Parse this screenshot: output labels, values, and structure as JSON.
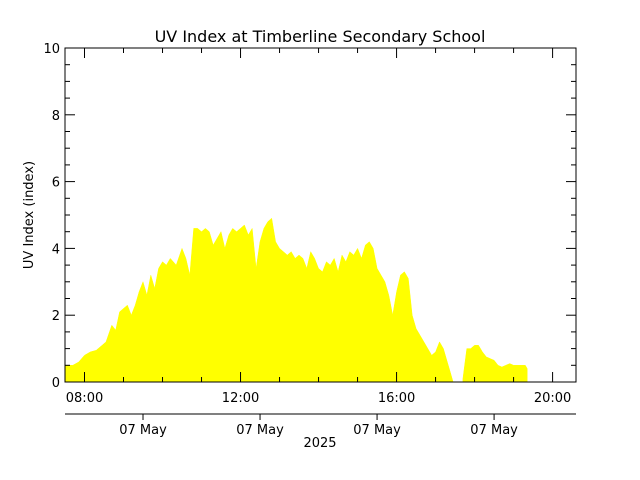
{
  "chart_data": {
    "type": "area",
    "title": "UV Index at Timberline Secondary School",
    "ylabel": "UV Index (index)",
    "ylim": [
      0,
      10
    ],
    "yticks": [
      0,
      2,
      4,
      6,
      8,
      10
    ],
    "xlim": [
      7.5,
      20.6
    ],
    "xticks": [
      {
        "x": 8,
        "label": "08:00"
      },
      {
        "x": 12,
        "label": "12:00"
      },
      {
        "x": 16,
        "label": "16:00"
      },
      {
        "x": 20,
        "label": "20:00"
      }
    ],
    "date_ticks": [
      {
        "x": 9.5,
        "label": "07 May"
      },
      {
        "x": 12.5,
        "label": "07 May"
      },
      {
        "x": 15.5,
        "label": "07 May"
      },
      {
        "x": 18.5,
        "label": "07 May"
      }
    ],
    "year_label": "2025",
    "grid": false,
    "fill_color": "#ffff00",
    "series": [
      {
        "segments": [
          [
            [
              7.5,
              0.5
            ],
            [
              7.6,
              0.5
            ],
            [
              7.7,
              0.5
            ],
            [
              7.85,
              0.6
            ],
            [
              8.0,
              0.8
            ],
            [
              8.15,
              0.9
            ],
            [
              8.3,
              0.95
            ],
            [
              8.45,
              1.1
            ],
            [
              8.55,
              1.2
            ],
            [
              8.7,
              1.7
            ],
            [
              8.8,
              1.55
            ],
            [
              8.9,
              2.1
            ],
            [
              9.0,
              2.2
            ],
            [
              9.1,
              2.3
            ],
            [
              9.2,
              2.0
            ],
            [
              9.3,
              2.3
            ],
            [
              9.4,
              2.7
            ],
            [
              9.5,
              3.0
            ],
            [
              9.6,
              2.6
            ],
            [
              9.7,
              3.2
            ],
            [
              9.8,
              2.8
            ],
            [
              9.9,
              3.4
            ],
            [
              10.0,
              3.6
            ],
            [
              10.1,
              3.5
            ],
            [
              10.2,
              3.7
            ],
            [
              10.35,
              3.5
            ],
            [
              10.5,
              4.0
            ],
            [
              10.6,
              3.7
            ],
            [
              10.7,
              3.2
            ],
            [
              10.8,
              4.6
            ],
            [
              10.9,
              4.6
            ],
            [
              11.0,
              4.5
            ],
            [
              11.1,
              4.6
            ],
            [
              11.2,
              4.5
            ],
            [
              11.3,
              4.1
            ],
            [
              11.4,
              4.3
            ],
            [
              11.5,
              4.5
            ],
            [
              11.6,
              4.0
            ],
            [
              11.7,
              4.4
            ],
            [
              11.8,
              4.6
            ],
            [
              11.9,
              4.5
            ],
            [
              12.0,
              4.6
            ],
            [
              12.1,
              4.7
            ],
            [
              12.2,
              4.4
            ],
            [
              12.3,
              4.6
            ],
            [
              12.4,
              3.4
            ],
            [
              12.5,
              4.2
            ],
            [
              12.6,
              4.6
            ],
            [
              12.7,
              4.8
            ],
            [
              12.8,
              4.9
            ],
            [
              12.9,
              4.2
            ],
            [
              13.0,
              4.0
            ],
            [
              13.1,
              3.9
            ],
            [
              13.2,
              3.8
            ],
            [
              13.3,
              3.9
            ],
            [
              13.4,
              3.7
            ],
            [
              13.5,
              3.8
            ],
            [
              13.6,
              3.7
            ],
            [
              13.7,
              3.4
            ],
            [
              13.8,
              3.9
            ],
            [
              13.9,
              3.7
            ],
            [
              14.0,
              3.4
            ],
            [
              14.1,
              3.3
            ],
            [
              14.2,
              3.6
            ],
            [
              14.3,
              3.5
            ],
            [
              14.4,
              3.7
            ],
            [
              14.5,
              3.3
            ],
            [
              14.6,
              3.8
            ],
            [
              14.7,
              3.6
            ],
            [
              14.8,
              3.9
            ],
            [
              14.9,
              3.8
            ],
            [
              15.0,
              4.0
            ],
            [
              15.1,
              3.7
            ],
            [
              15.2,
              4.1
            ],
            [
              15.3,
              4.2
            ],
            [
              15.4,
              4.0
            ],
            [
              15.5,
              3.4
            ],
            [
              15.6,
              3.2
            ],
            [
              15.7,
              3.0
            ],
            [
              15.8,
              2.6
            ],
            [
              15.9,
              2.0
            ],
            [
              16.0,
              2.7
            ],
            [
              16.1,
              3.2
            ],
            [
              16.2,
              3.3
            ],
            [
              16.3,
              3.1
            ],
            [
              16.4,
              2.0
            ],
            [
              16.5,
              1.6
            ],
            [
              16.6,
              1.4
            ],
            [
              16.7,
              1.2
            ],
            [
              16.8,
              1.0
            ],
            [
              16.9,
              0.8
            ],
            [
              17.0,
              0.9
            ],
            [
              17.1,
              1.2
            ],
            [
              17.2,
              1.0
            ],
            [
              17.3,
              0.6
            ],
            [
              17.4,
              0.2
            ],
            [
              17.45,
              0.0
            ]
          ],
          [
            [
              17.7,
              0.1
            ],
            [
              17.8,
              1.0
            ],
            [
              17.9,
              1.0
            ],
            [
              18.0,
              1.1
            ],
            [
              18.1,
              1.1
            ],
            [
              18.2,
              0.9
            ],
            [
              18.3,
              0.75
            ],
            [
              18.4,
              0.7
            ],
            [
              18.5,
              0.65
            ],
            [
              18.6,
              0.5
            ],
            [
              18.7,
              0.45
            ],
            [
              18.8,
              0.5
            ],
            [
              18.9,
              0.55
            ],
            [
              19.0,
              0.5
            ],
            [
              19.1,
              0.5
            ],
            [
              19.2,
              0.5
            ],
            [
              19.3,
              0.5
            ],
            [
              19.35,
              0.4
            ]
          ]
        ]
      }
    ]
  }
}
